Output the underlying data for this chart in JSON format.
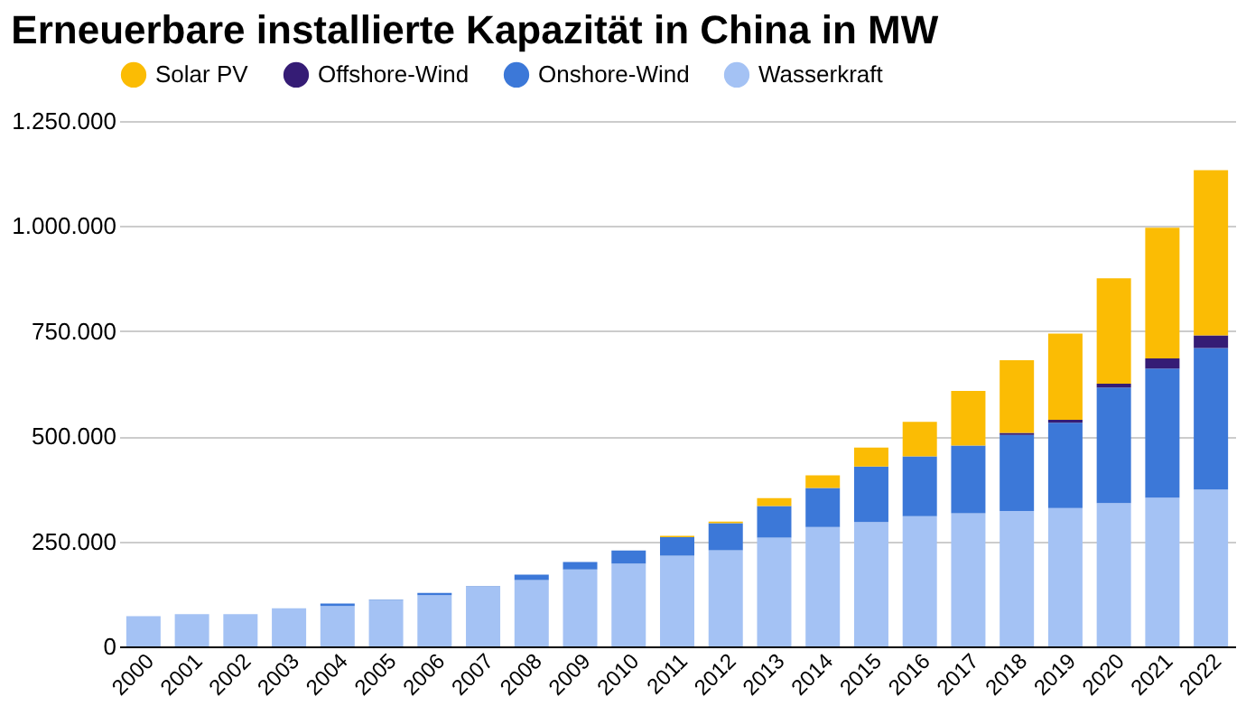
{
  "chart_data": {
    "type": "bar",
    "title": "Erneuerbare installierte Kapazität in China in MW",
    "stacked": true,
    "categories": [
      "2000",
      "2001",
      "2002",
      "2003",
      "2004",
      "2005",
      "2006",
      "2007",
      "2008",
      "2009",
      "2010",
      "2011",
      "2012",
      "2013",
      "2014",
      "2015",
      "2016",
      "2017",
      "2018",
      "2019",
      "2020",
      "2021",
      "2022"
    ],
    "series": [
      {
        "name": "Wasserkraft",
        "color": "#a4c2f4",
        "values": [
          72000,
          77000,
          77000,
          91000,
          96000,
          110000,
          122000,
          142000,
          158000,
          183000,
          197000,
          216000,
          229000,
          259000,
          284000,
          296000,
          310000,
          317000,
          322000,
          329000,
          341000,
          354000,
          373000
        ]
      },
      {
        "name": "Onshore-Wind",
        "color": "#3c78d8",
        "values": [
          0,
          0,
          0,
          0,
          6000,
          1000,
          5000,
          1000,
          13000,
          18000,
          31000,
          44000,
          64000,
          75000,
          93000,
          132000,
          142000,
          161000,
          181000,
          203000,
          275000,
          307000,
          337000
        ]
      },
      {
        "name": "Offshore-Wind",
        "color": "#351c75",
        "values": [
          0,
          0,
          0,
          0,
          0,
          0,
          0,
          0,
          0,
          0,
          0,
          0,
          0,
          0,
          0,
          0,
          0,
          0,
          5000,
          7000,
          9000,
          24000,
          30000
        ]
      },
      {
        "name": "Solar PV",
        "color": "#fbbc04",
        "values": [
          0,
          0,
          0,
          0,
          0,
          0,
          0,
          0,
          0,
          0,
          0,
          3000,
          4000,
          19000,
          30000,
          45000,
          82000,
          130000,
          173000,
          205000,
          251000,
          311000,
          393000
        ]
      }
    ],
    "ylim": [
      0,
      1250000
    ],
    "yticks": [
      {
        "value": 0,
        "label": "0"
      },
      {
        "value": 250000,
        "label": "250.000"
      },
      {
        "value": 500000,
        "label": "500.000"
      },
      {
        "value": 750000,
        "label": "750.000"
      },
      {
        "value": 1000000,
        "label": "1.000.000"
      },
      {
        "value": 1250000,
        "label": "1.250.000"
      }
    ],
    "grid": "y",
    "legend": "top"
  }
}
